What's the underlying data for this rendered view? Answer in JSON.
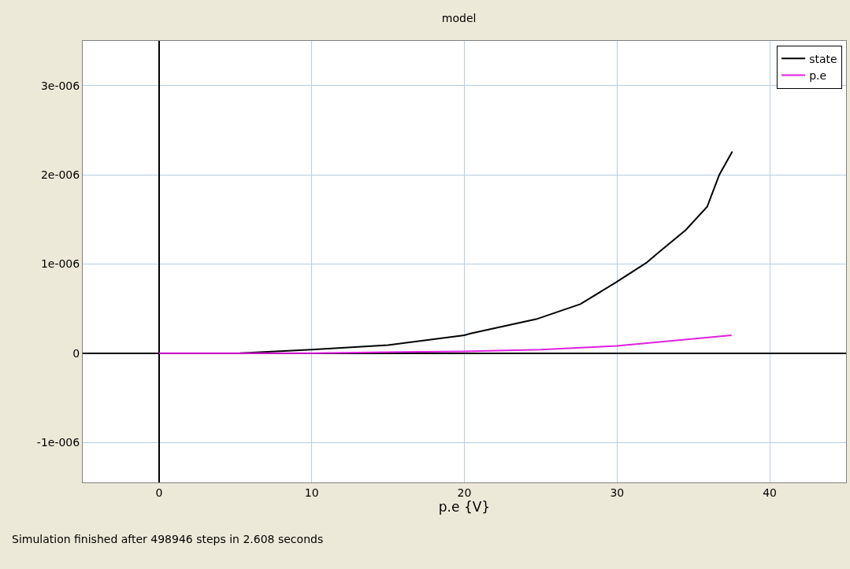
{
  "chart_data": {
    "type": "line",
    "title": "model",
    "xlabel": "p.e {V}",
    "annotations": [
      "Simulation finished after 498946 steps in 2.608 seconds"
    ],
    "series": [
      {
        "name": "state",
        "color": "#000000",
        "x": [
          5.3,
          10,
          15,
          20,
          20.4,
          24.7,
          27.6,
          29.9,
          31.9,
          32.8,
          34.5,
          35.9,
          36.7,
          37.55
        ],
        "values": [
          0,
          4e-08,
          9e-08,
          2e-07,
          2.2e-07,
          3.8e-07,
          5.5e-07,
          7.9e-07,
          1.01e-06,
          1.14e-06,
          1.38e-06,
          1.64e-06,
          2e-06,
          2.26e-06
        ]
      },
      {
        "name": "p.e",
        "color": "#e020e0",
        "x": [
          0,
          10,
          20,
          25,
          30,
          37.5
        ],
        "values": [
          0,
          0,
          2e-08,
          4e-08,
          8e-08,
          2e-07
        ]
      }
    ],
    "xlim": [
      -5,
      45
    ],
    "xticks": [
      0,
      10,
      20,
      30,
      40
    ],
    "ylim": [
      -1.45e-06,
      3.5e-06
    ],
    "yticks": [
      {
        "value": -1e-06,
        "label": "-1e-006"
      },
      0,
      {
        "value": 1e-06,
        "label": "1e-006"
      },
      {
        "value": 2e-06,
        "label": "2e-006"
      },
      {
        "value": 3e-06,
        "label": "3e-006"
      }
    ],
    "grid": true,
    "legend": "top right",
    "line_style": "solid",
    "marker": "none"
  }
}
